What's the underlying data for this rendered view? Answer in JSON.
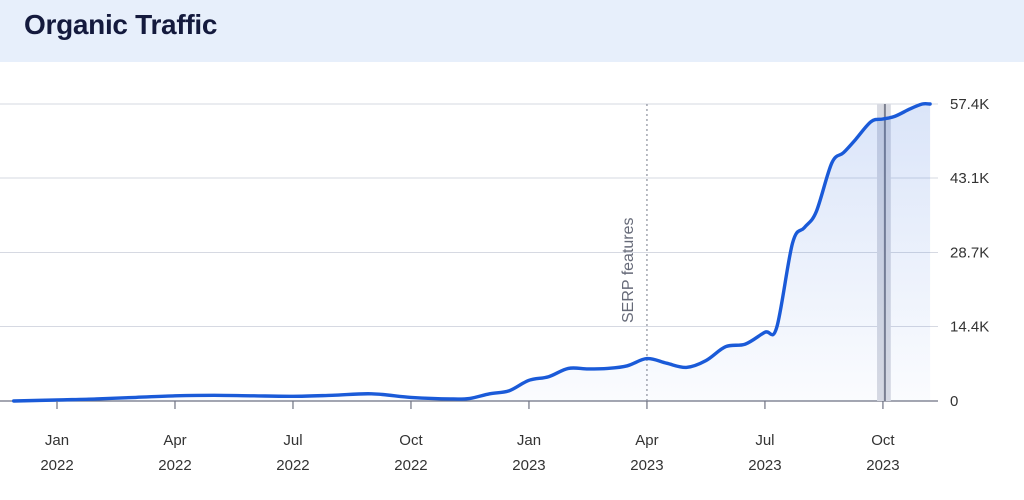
{
  "header": {
    "title": "Organic Traffic"
  },
  "chart_data": {
    "type": "area",
    "title": "Organic Traffic",
    "xlabel": "",
    "ylabel": "",
    "x_ticks": [
      {
        "month": "Jan",
        "year": "2022",
        "m": 0
      },
      {
        "month": "Apr",
        "year": "2022",
        "m": 3
      },
      {
        "month": "Jul",
        "year": "2022",
        "m": 6
      },
      {
        "month": "Oct",
        "year": "2022",
        "m": 9
      },
      {
        "month": "Jan",
        "year": "2023",
        "m": 12
      },
      {
        "month": "Apr",
        "year": "2023",
        "m": 15
      },
      {
        "month": "Jul",
        "year": "2023",
        "m": 18
      },
      {
        "month": "Oct",
        "year": "2023",
        "m": 21
      }
    ],
    "y_ticks": [
      {
        "label": "0",
        "value": 0
      },
      {
        "label": "14.4K",
        "value": 14400
      },
      {
        "label": "28.7K",
        "value": 28700
      },
      {
        "label": "43.1K",
        "value": 43100
      },
      {
        "label": "57.4K",
        "value": 57400
      }
    ],
    "ylim": [
      0,
      57400
    ],
    "xlim": [
      -1.1,
      22.2
    ],
    "grid": true,
    "annotations": [
      {
        "label": "SERP features",
        "m": 15
      }
    ],
    "highlight_band": {
      "from": 20.85,
      "to": 21.2,
      "marker": 21.05
    },
    "series": [
      {
        "name": "",
        "color": "#1a5ad8",
        "points": [
          [
            -1.1,
            0
          ],
          [
            0,
            200
          ],
          [
            1,
            400
          ],
          [
            2,
            700
          ],
          [
            3,
            1000
          ],
          [
            4,
            1100
          ],
          [
            5,
            1000
          ],
          [
            6,
            900
          ],
          [
            7,
            1100
          ],
          [
            8,
            1400
          ],
          [
            9,
            700
          ],
          [
            10,
            400
          ],
          [
            10.5,
            500
          ],
          [
            11,
            1400
          ],
          [
            11.5,
            2000
          ],
          [
            12,
            4000
          ],
          [
            12.5,
            4700
          ],
          [
            13,
            6300
          ],
          [
            13.5,
            6200
          ],
          [
            14,
            6300
          ],
          [
            14.5,
            6800
          ],
          [
            15,
            8200
          ],
          [
            15.5,
            7300
          ],
          [
            16,
            6500
          ],
          [
            16.5,
            7800
          ],
          [
            17,
            10500
          ],
          [
            17.5,
            11000
          ],
          [
            18,
            13300
          ],
          [
            18.3,
            14200
          ],
          [
            18.7,
            30500
          ],
          [
            19,
            33500
          ],
          [
            19.3,
            36500
          ],
          [
            19.7,
            46000
          ],
          [
            20,
            48000
          ],
          [
            20.3,
            50500
          ],
          [
            20.7,
            54000
          ],
          [
            21,
            54500
          ],
          [
            21.3,
            55000
          ],
          [
            21.7,
            56500
          ],
          [
            22,
            57400
          ],
          [
            22.2,
            57400
          ]
        ]
      }
    ]
  }
}
